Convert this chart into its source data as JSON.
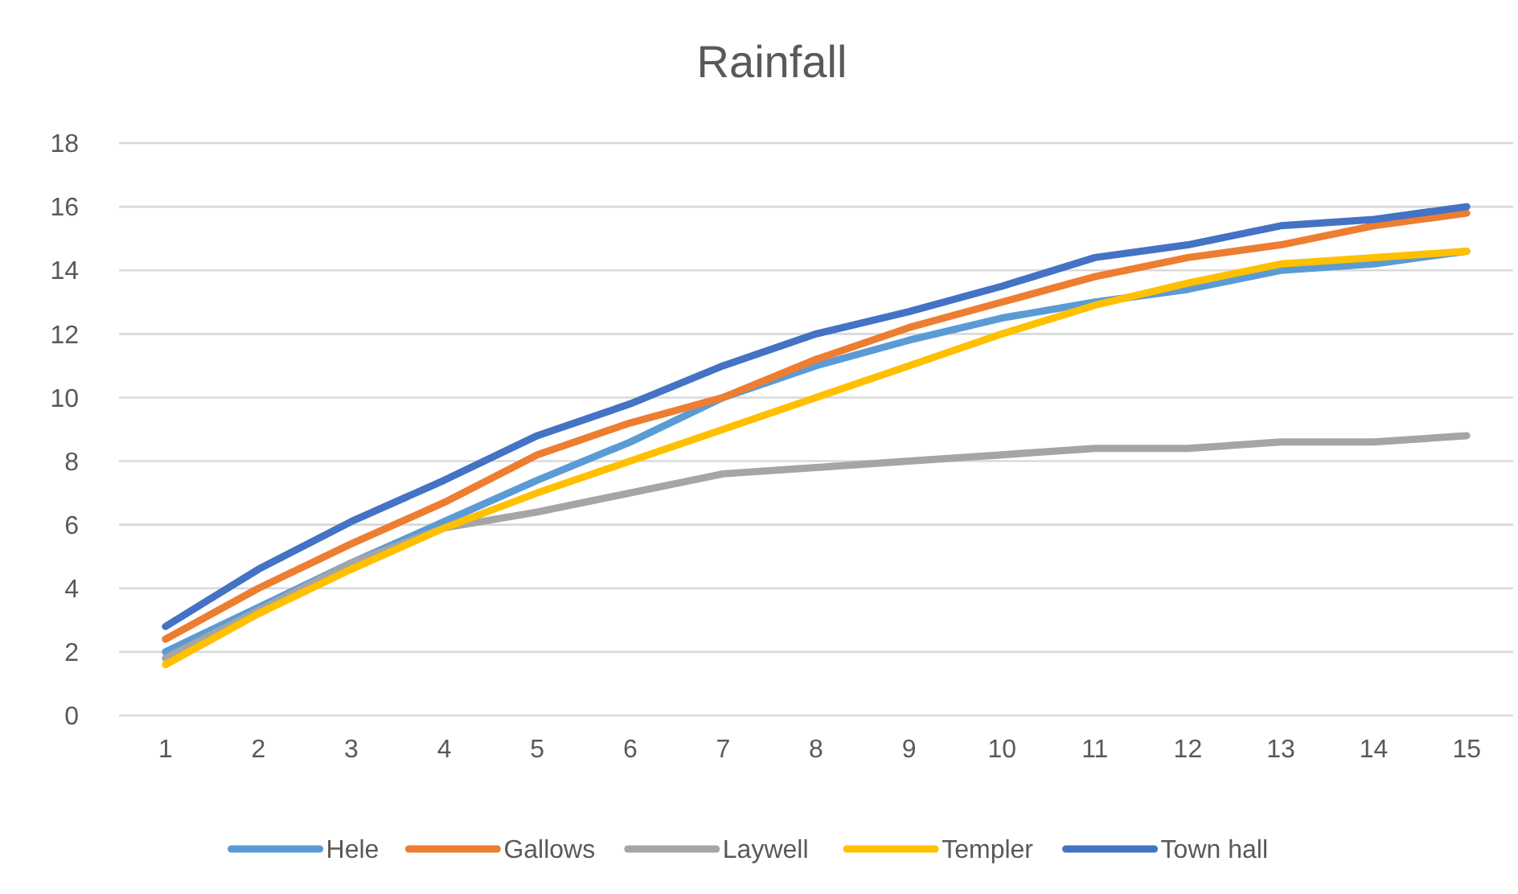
{
  "chart_data": {
    "type": "line",
    "title": "Rainfall",
    "categories": [
      "1",
      "2",
      "3",
      "4",
      "5",
      "6",
      "7",
      "8",
      "9",
      "10",
      "11",
      "12",
      "13",
      "14",
      "15"
    ],
    "series": [
      {
        "name": "Hele",
        "color": "#5b9bd5",
        "values": [
          2.0,
          3.4,
          4.8,
          6.1,
          7.4,
          8.6,
          10.0,
          11.0,
          11.8,
          12.5,
          13.0,
          13.4,
          14.0,
          14.2,
          14.6
        ]
      },
      {
        "name": "Gallows",
        "color": "#ed7d31",
        "values": [
          2.4,
          4.0,
          5.4,
          6.7,
          8.2,
          9.2,
          10.0,
          11.2,
          12.2,
          13.0,
          13.8,
          14.4,
          14.8,
          15.4,
          15.8
        ]
      },
      {
        "name": "Laywell",
        "color": "#a5a5a5",
        "values": [
          1.8,
          3.3,
          4.8,
          5.9,
          6.4,
          7.0,
          7.6,
          7.8,
          8.0,
          8.2,
          8.4,
          8.4,
          8.6,
          8.6,
          8.8
        ]
      },
      {
        "name": "Templer",
        "color": "#ffc000",
        "values": [
          1.6,
          3.2,
          4.6,
          5.9,
          7.0,
          8.0,
          9.0,
          10.0,
          11.0,
          12.0,
          12.9,
          13.6,
          14.2,
          14.4,
          14.6
        ]
      },
      {
        "name": "Town hall",
        "color": "#4472c4",
        "values": [
          2.8,
          4.6,
          6.1,
          7.4,
          8.8,
          9.8,
          11.0,
          12.0,
          12.7,
          13.5,
          14.4,
          14.8,
          15.4,
          15.6,
          16.0
        ]
      }
    ],
    "ylim": [
      0,
      18
    ],
    "yticks": [
      0,
      2,
      4,
      6,
      8,
      10,
      12,
      14,
      16,
      18
    ],
    "grid": "y",
    "legend": "bottom",
    "marker": "none",
    "line_style": "solid"
  }
}
